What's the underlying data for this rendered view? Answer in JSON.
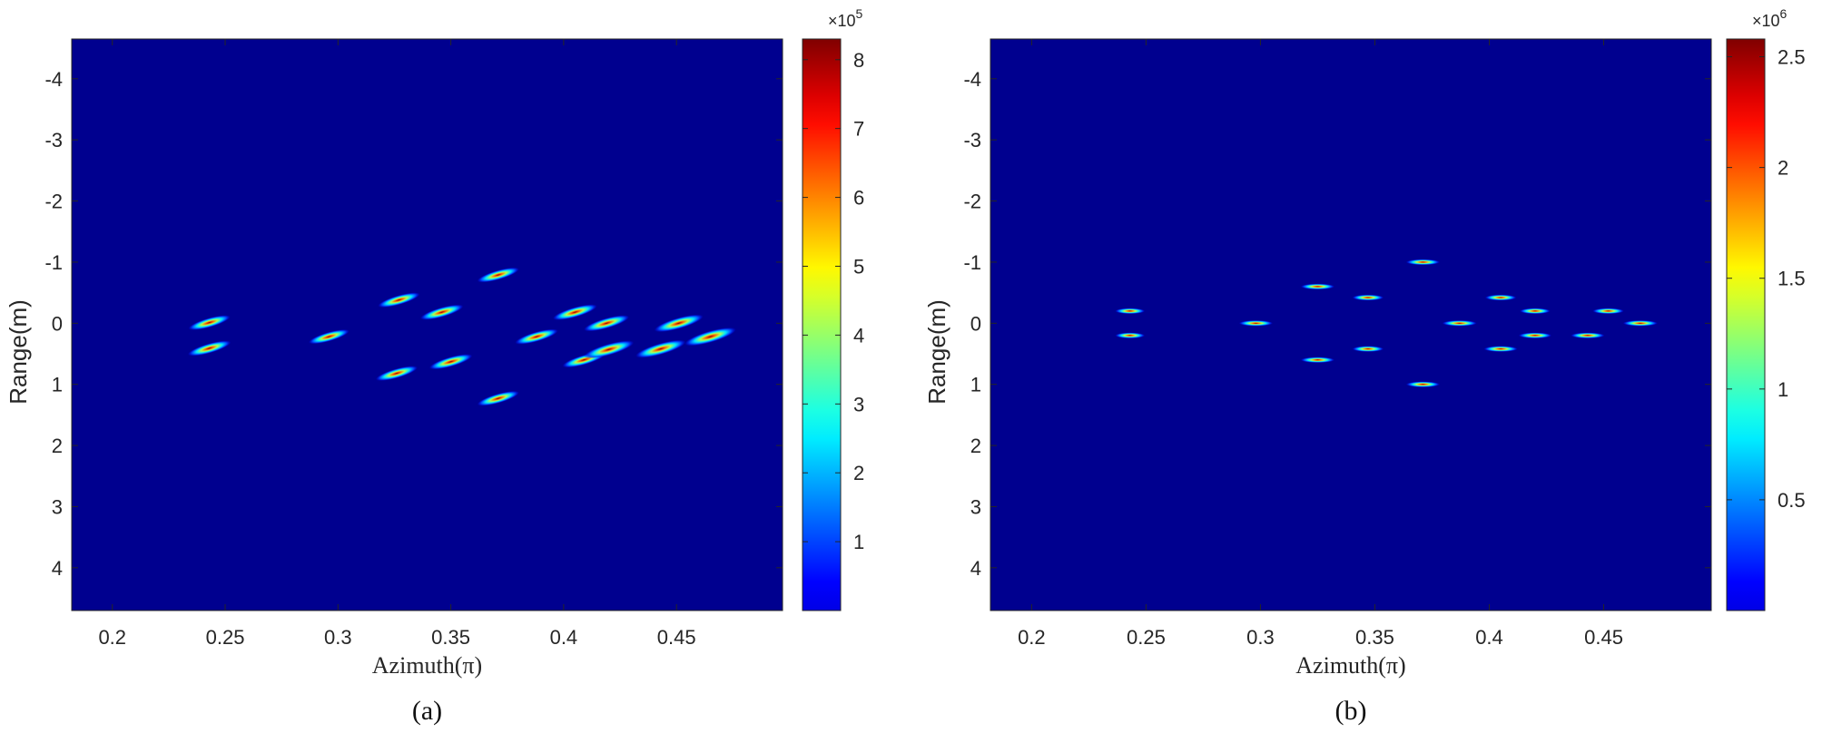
{
  "chart_data": [
    {
      "type": "heatmap",
      "caption": "(a)",
      "xlabel": "Azimuth(π)",
      "ylabel": "Range(m)",
      "xlim": [
        0.182,
        0.497
      ],
      "ylim": [
        -4.65,
        4.7
      ],
      "y_reversed": true,
      "xticks": [
        "0.2",
        "0.25",
        "0.3",
        "0.35",
        "0.4",
        "0.45"
      ],
      "yticks": [
        "-4",
        "-3",
        "-2",
        "-1",
        "0",
        "1",
        "2",
        "3",
        "4"
      ],
      "colorbar": {
        "colormap": "jet",
        "min": 0,
        "max": 8.3,
        "exponent": "×10^5",
        "exponent_base": "×10",
        "exponent_power": "5",
        "ticks": [
          "1",
          "2",
          "3",
          "4",
          "5",
          "6",
          "7",
          "8"
        ]
      },
      "background_color": "#00008f",
      "grid": false,
      "blob_shape": "tilted-streak",
      "points": [
        {
          "x": 0.243,
          "y": -0.01,
          "v": 0.55
        },
        {
          "x": 0.243,
          "y": 0.41,
          "v": 0.6
        },
        {
          "x": 0.296,
          "y": 0.22,
          "v": 0.5
        },
        {
          "x": 0.327,
          "y": -0.38,
          "v": 0.55
        },
        {
          "x": 0.346,
          "y": -0.18,
          "v": 0.6
        },
        {
          "x": 0.371,
          "y": -0.79,
          "v": 0.55
        },
        {
          "x": 0.326,
          "y": 0.82,
          "v": 0.55
        },
        {
          "x": 0.35,
          "y": 0.63,
          "v": 0.6
        },
        {
          "x": 0.371,
          "y": 1.23,
          "v": 0.55
        },
        {
          "x": 0.388,
          "y": 0.22,
          "v": 0.6
        },
        {
          "x": 0.405,
          "y": -0.18,
          "v": 0.65
        },
        {
          "x": 0.419,
          "y": 0.0,
          "v": 0.7
        },
        {
          "x": 0.409,
          "y": 0.6,
          "v": 0.6
        },
        {
          "x": 0.42,
          "y": 0.43,
          "v": 0.9
        },
        {
          "x": 0.451,
          "y": 0.0,
          "v": 0.85
        },
        {
          "x": 0.443,
          "y": 0.42,
          "v": 0.9
        },
        {
          "x": 0.465,
          "y": 0.22,
          "v": 0.95
        }
      ]
    },
    {
      "type": "heatmap",
      "caption": "(b)",
      "xlabel": "Azimuth(π)",
      "ylabel": "Range(m)",
      "xlim": [
        0.182,
        0.497
      ],
      "ylim": [
        -4.65,
        4.7
      ],
      "y_reversed": true,
      "xticks": [
        "0.2",
        "0.25",
        "0.3",
        "0.35",
        "0.4",
        "0.45"
      ],
      "yticks": [
        "-4",
        "-3",
        "-2",
        "-1",
        "0",
        "1",
        "2",
        "3",
        "4"
      ],
      "colorbar": {
        "colormap": "jet",
        "min": 0,
        "max": 2.58,
        "exponent": "×10^6",
        "exponent_base": "×10",
        "exponent_power": "6",
        "ticks": [
          "0.5",
          "1",
          "1.5",
          "2",
          "2.5"
        ]
      },
      "background_color": "#00008f",
      "grid": false,
      "blob_shape": "horizontal-streak",
      "points": [
        {
          "x": 0.243,
          "y": -0.2,
          "v": 0.6
        },
        {
          "x": 0.243,
          "y": 0.2,
          "v": 0.6
        },
        {
          "x": 0.298,
          "y": 0.0,
          "v": 0.85
        },
        {
          "x": 0.325,
          "y": -0.6,
          "v": 0.85
        },
        {
          "x": 0.325,
          "y": 0.6,
          "v": 0.85
        },
        {
          "x": 0.347,
          "y": -0.42,
          "v": 0.7
        },
        {
          "x": 0.347,
          "y": 0.42,
          "v": 0.7
        },
        {
          "x": 0.371,
          "y": -1.0,
          "v": 0.85
        },
        {
          "x": 0.371,
          "y": 1.0,
          "v": 0.85
        },
        {
          "x": 0.387,
          "y": 0.0,
          "v": 0.9
        },
        {
          "x": 0.405,
          "y": -0.42,
          "v": 0.7
        },
        {
          "x": 0.405,
          "y": 0.42,
          "v": 0.85
        },
        {
          "x": 0.42,
          "y": -0.2,
          "v": 0.65
        },
        {
          "x": 0.42,
          "y": 0.2,
          "v": 0.8
        },
        {
          "x": 0.452,
          "y": -0.2,
          "v": 0.7
        },
        {
          "x": 0.443,
          "y": 0.2,
          "v": 0.85
        },
        {
          "x": 0.466,
          "y": 0.0,
          "v": 0.9
        }
      ]
    }
  ]
}
